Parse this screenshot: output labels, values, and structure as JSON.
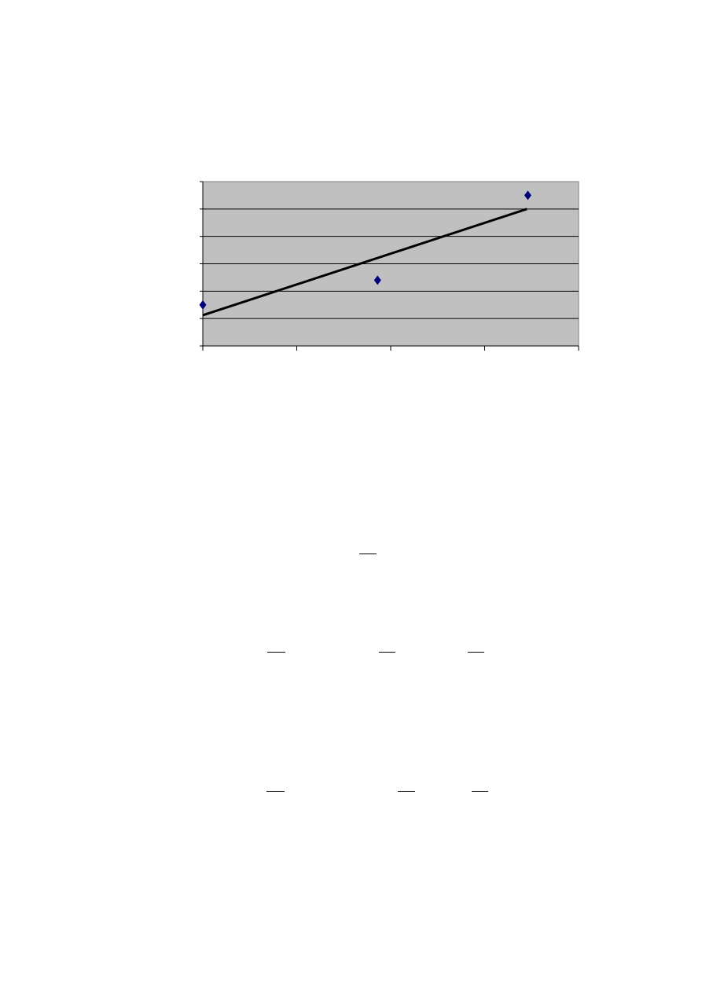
{
  "chart_data": {
    "type": "scatter",
    "title": "",
    "xlabel": "",
    "ylabel": "",
    "xlim": [
      0,
      4
    ],
    "ylim": [
      0,
      6
    ],
    "grid": true,
    "plot_background": "#c0c0c0",
    "marker": "diamond",
    "marker_color": "#000080",
    "points": [
      {
        "x": 0.0,
        "y": 1.5
      },
      {
        "x": 1.86,
        "y": 2.4
      },
      {
        "x": 3.46,
        "y": 5.5
      }
    ],
    "trendline": {
      "type": "linear",
      "color": "#000000",
      "from": {
        "x": 0.0,
        "y": 1.12
      },
      "to": {
        "x": 3.45,
        "y": 5.0
      }
    }
  }
}
